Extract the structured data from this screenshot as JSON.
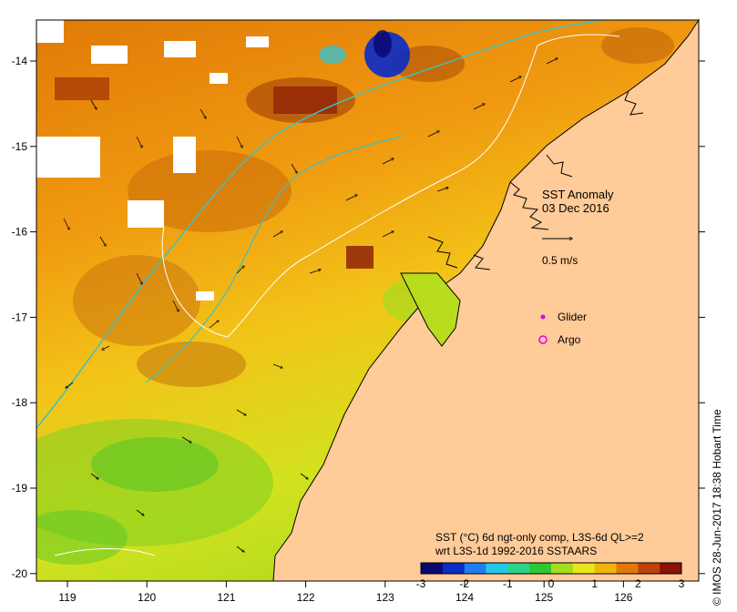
{
  "map": {
    "title": "SST Anomaly",
    "date": "03 Dec 2016",
    "vector_scale_label": "0.5 m/s",
    "legend": {
      "glider_label": "Glider",
      "argo_label": "Argo",
      "glider_color": "#e000e0",
      "argo_color": "#e000e0"
    },
    "colorbar": {
      "line1": "SST (°C) 6d ngt-only comp, L3S-6d QL>=2",
      "line2": "wrt L3S-1d 1992-2016 SSTAARS",
      "ticks": [
        "-3",
        "-2",
        "-1",
        "0",
        "1",
        "2",
        "3"
      ],
      "colors": [
        "#08086e",
        "#0a2bc8",
        "#1e7ef0",
        "#22c8e8",
        "#2ad28a",
        "#2ec832",
        "#a6dc1e",
        "#e8e61a",
        "#f2b40c",
        "#e07a06",
        "#c04208",
        "#8a1206"
      ]
    },
    "x_ticks": [
      "119",
      "120",
      "121",
      "122",
      "123",
      "124",
      "125",
      "126"
    ],
    "y_ticks": [
      "-14",
      "-15",
      "-16",
      "-17",
      "-18",
      "-19",
      "-20"
    ],
    "credit": "© IMOS 28-Jun-2017 18:38 Hobart Time",
    "colors": {
      "land": "#ffcb98",
      "coast": "#000000",
      "bathymetry_200m": "#40c0c0",
      "contour": "#ffffff"
    }
  }
}
